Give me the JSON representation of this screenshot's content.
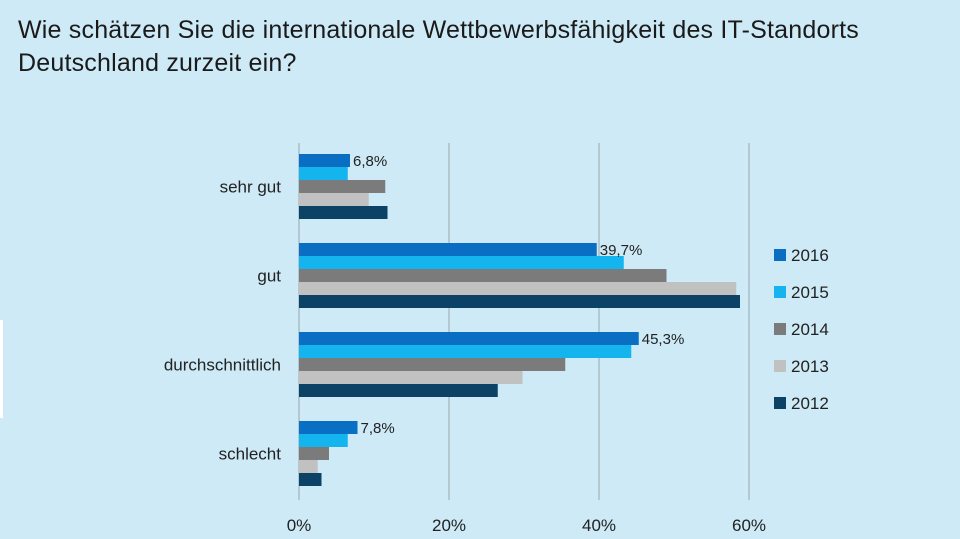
{
  "title": "Wie schätzen Sie die internationale Wettbewerbsfähigkeit des IT-Standorts Deutschland zurzeit ein?",
  "chart_data": {
    "type": "bar",
    "orientation": "horizontal",
    "title": "Wie schätzen Sie die internationale Wettbewerbsfähigkeit des IT-Standorts Deutschland zurzeit ein?",
    "categories": [
      "sehr gut",
      "gut",
      "durchschnittlich",
      "schlecht"
    ],
    "series": [
      {
        "name": "2016",
        "color": "#0a6fc2",
        "values": [
          6.8,
          39.7,
          45.3,
          7.8
        ],
        "labels": [
          "6,8%",
          "39,7%",
          "45,3%",
          "7,8%"
        ]
      },
      {
        "name": "2015",
        "color": "#14b4ee",
        "values": [
          6.5,
          43.3,
          44.3,
          6.5
        ]
      },
      {
        "name": "2014",
        "color": "#7b7b7b",
        "values": [
          11.5,
          49.0,
          35.5,
          4.0
        ]
      },
      {
        "name": "2013",
        "color": "#c1c1c1",
        "values": [
          9.3,
          58.3,
          29.8,
          2.5
        ]
      },
      {
        "name": "2012",
        "color": "#0b4266",
        "values": [
          11.8,
          58.8,
          26.5,
          3.0
        ]
      }
    ],
    "xlim": [
      0,
      60
    ],
    "xticks": [
      "0%",
      "20%",
      "40%",
      "60%"
    ],
    "grid": true,
    "legend": "right"
  }
}
